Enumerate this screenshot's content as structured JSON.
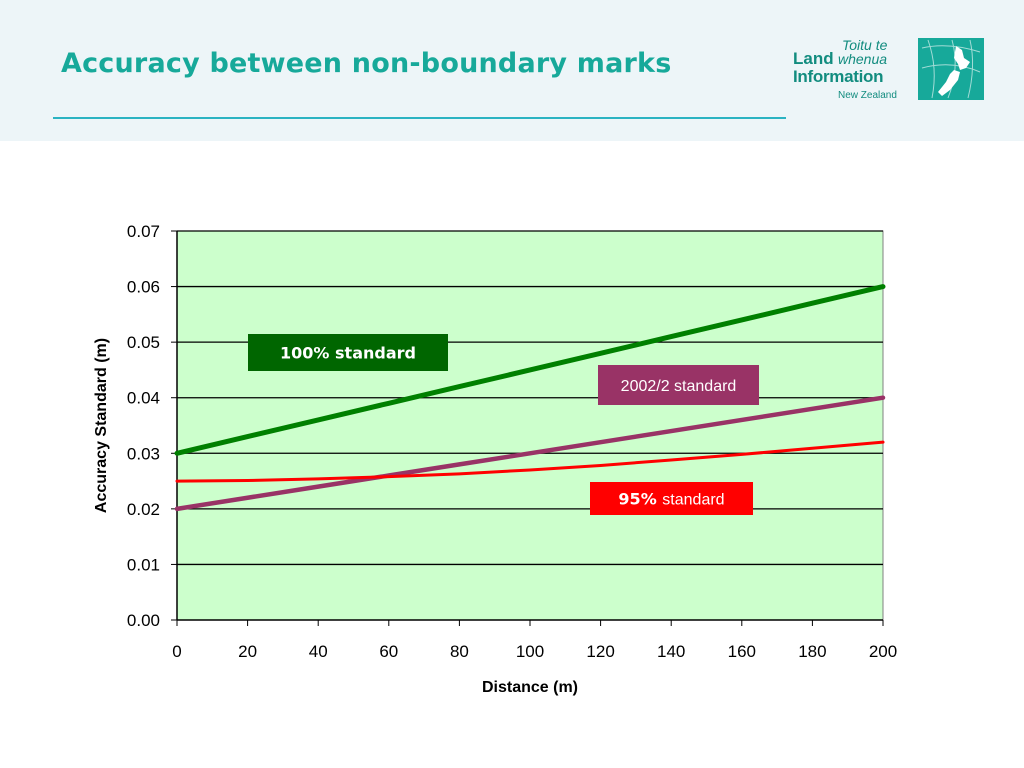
{
  "slide": {
    "title": "Accuracy between non-boundary marks"
  },
  "logo": {
    "line1": "Toitu te",
    "line2_bold": "Land",
    "line2_italic": "whenua",
    "line3": "Information",
    "line4": "New Zealand",
    "color": "#128c7f",
    "map_color": "#17a99a"
  },
  "chart_data": {
    "type": "line",
    "title": "",
    "xlabel": "Distance (m)",
    "ylabel": "Accuracy Standard (m)",
    "xlim": [
      0,
      200
    ],
    "ylim": [
      0,
      0.07
    ],
    "x_ticks": [
      "0",
      "20",
      "40",
      "60",
      "80",
      "100",
      "120",
      "140",
      "160",
      "180",
      "200"
    ],
    "y_ticks": [
      "0.00",
      "0.01",
      "0.02",
      "0.03",
      "0.04",
      "0.05",
      "0.06",
      "0.07"
    ],
    "grid": true,
    "plot_background": "#ccffcc",
    "series": [
      {
        "name": "100% standard",
        "color": "#008000",
        "x": [
          0,
          20,
          40,
          60,
          80,
          100,
          120,
          140,
          160,
          180,
          200
        ],
        "y": [
          0.03,
          0.033,
          0.036,
          0.039,
          0.042,
          0.045,
          0.048,
          0.051,
          0.054,
          0.057,
          0.06
        ]
      },
      {
        "name": "2002/2 standard",
        "color": "#993366",
        "x": [
          0,
          20,
          40,
          60,
          80,
          100,
          120,
          140,
          160,
          180,
          200
        ],
        "y": [
          0.02,
          0.022,
          0.024,
          0.026,
          0.028,
          0.03,
          0.032,
          0.034,
          0.036,
          0.038,
          0.04
        ]
      },
      {
        "name": "95% standard",
        "color": "#ff0000",
        "x": [
          0,
          20,
          40,
          60,
          80,
          100,
          120,
          140,
          160,
          180,
          200
        ],
        "y": [
          0.025,
          0.0251,
          0.0254,
          0.0258,
          0.0263,
          0.027,
          0.0278,
          0.0288,
          0.0298,
          0.0309,
          0.032
        ]
      }
    ],
    "annotations": [
      {
        "text": "100% standard",
        "series": 0,
        "bg": "#006600"
      },
      {
        "text": "2002/2 standard",
        "series": 1,
        "bg": "#993366"
      },
      {
        "text_bold": "95%",
        "text_rest": "standard",
        "series": 2,
        "bg": "#ff0000"
      }
    ]
  }
}
